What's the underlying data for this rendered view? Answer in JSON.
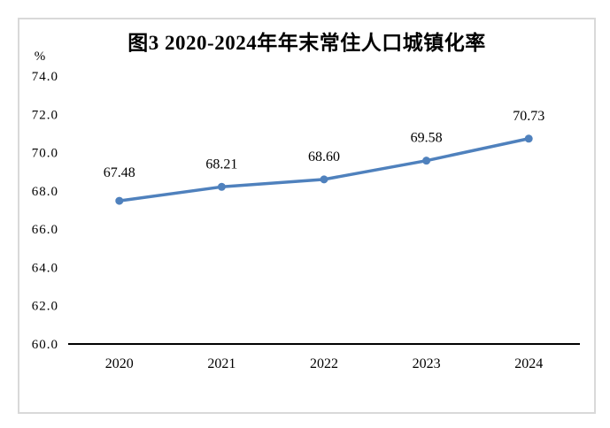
{
  "page": {
    "background": "#ffffff",
    "frame_border_color": "#d9d9d9"
  },
  "chart_data": {
    "type": "line",
    "title": "图3 2020-2024年年末常住人口城镇化率",
    "ylabel": "%",
    "xlabel": "",
    "categories": [
      "2020",
      "2021",
      "2022",
      "2023",
      "2024"
    ],
    "values": [
      67.48,
      68.21,
      68.6,
      69.58,
      70.73
    ],
    "data_labels": [
      "67.48",
      "68.21",
      "68.60",
      "69.58",
      "70.73"
    ],
    "ylim": [
      60.0,
      74.0
    ],
    "ytick_step": 2.0,
    "yticks": [
      "74.0",
      "72.0",
      "70.0",
      "68.0",
      "66.0",
      "64.0",
      "62.0",
      "60.0"
    ],
    "grid": false,
    "legend": "none",
    "line_color": "#4F81BD",
    "marker": "circle",
    "axis_color": "#000000"
  }
}
